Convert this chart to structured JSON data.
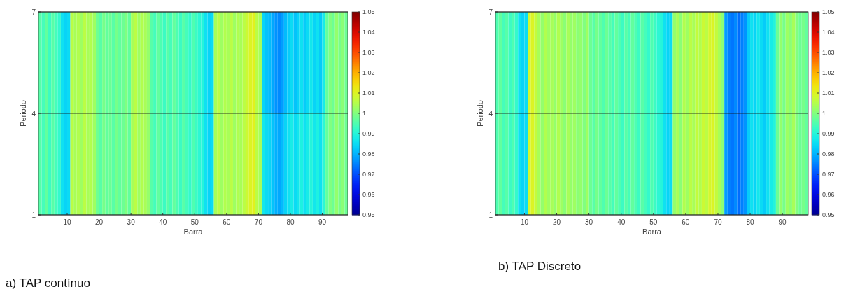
{
  "chart_data": [
    {
      "type": "heatmap",
      "title": "a)   TAP contínuo",
      "xlabel": "Barra",
      "ylabel": "Periodo",
      "x": [
        1.5,
        2.5,
        3.5,
        4.5,
        5.5,
        6.5,
        7.5,
        8.5,
        9.5,
        10.5,
        11.5,
        12.5,
        13.5,
        14.5,
        15.5,
        16.5,
        17.5,
        18.5,
        19.5,
        20.5,
        21.5,
        22.5,
        23.5,
        24.5,
        25.5,
        26.5,
        27.5,
        28.5,
        29.5,
        30.5,
        31.5,
        32.5,
        33.5,
        34.5,
        35.5,
        36.5,
        37.5,
        38.5,
        39.5,
        40.5,
        41.5,
        42.5,
        43.5,
        44.5,
        45.5,
        46.5,
        47.5,
        48.5,
        49.5,
        50.5,
        51.5,
        52.5,
        53.5,
        54.5,
        55.5,
        56.5,
        57.5,
        58.5,
        59.5,
        60.5,
        61.5,
        62.5,
        63.5,
        64.5,
        65.5,
        66.5,
        67.5,
        68.5,
        69.5,
        70.5,
        71.5,
        72.5,
        73.5,
        74.5,
        75.5,
        76.5,
        77.5,
        78.5,
        79.5,
        80.5,
        81.5,
        82.5,
        83.5,
        84.5,
        85.5,
        86.5,
        87.5,
        88.5,
        89.5,
        90.5,
        91.5,
        92.5,
        93.5,
        94.5,
        95.5,
        96.5,
        97.5
      ],
      "xlim": [
        1,
        98
      ],
      "xticks": [
        10,
        20,
        30,
        40,
        50,
        60,
        70,
        80,
        90
      ],
      "ylim": [
        1,
        7
      ],
      "yticks": [
        1,
        4,
        7
      ],
      "grid": "y",
      "clim": [
        0.95,
        1.05
      ],
      "cticks": [
        0.95,
        0.96,
        0.97,
        0.98,
        0.99,
        1,
        1.01,
        1.02,
        1.03,
        1.04,
        1.05
      ],
      "cells": [
        [
          0.996,
          0.994,
          0.997,
          0.993,
          0.996,
          0.994,
          0.992,
          0.986,
          0.984,
          0.985,
          1.006,
          1.004,
          1.005,
          1.003,
          1.006,
          1.004,
          1.005,
          1.003,
          0.998,
          0.996,
          0.999,
          0.997,
          0.998,
          0.996,
          0.999,
          0.997,
          0.998,
          1.0,
          0.997,
          1.004,
          1.006,
          1.003,
          1.005,
          1.004,
          1.002,
          0.996,
          0.994,
          0.997,
          0.995,
          0.993,
          0.996,
          0.994,
          0.997,
          0.995,
          0.993,
          0.996,
          0.994,
          0.992,
          0.995,
          0.993,
          0.991,
          0.99,
          0.986,
          0.984,
          0.985,
          1.004,
          1.006,
          1.003,
          1.005,
          1.004,
          1.006,
          1.003,
          1.005,
          1.004,
          1.006,
          1.008,
          1.01,
          1.011,
          1.006,
          1.004,
          0.984,
          0.982,
          0.981,
          0.979,
          0.977,
          0.976,
          0.978,
          0.981,
          0.983,
          0.985,
          0.982,
          0.984,
          0.986,
          0.983,
          0.985,
          0.987,
          0.984,
          0.986,
          0.983,
          0.988,
          0.997,
          1.0,
          0.998,
          1.002,
          0.999,
          1.001,
          0.998
        ],
        [
          0.996,
          0.994,
          0.997,
          0.993,
          0.996,
          0.994,
          0.992,
          0.986,
          0.984,
          0.985,
          1.006,
          1.004,
          1.005,
          1.003,
          1.006,
          1.004,
          1.005,
          1.003,
          0.998,
          0.996,
          0.999,
          0.997,
          0.998,
          0.996,
          0.999,
          0.997,
          0.998,
          1.0,
          0.997,
          1.004,
          1.006,
          1.003,
          1.005,
          1.004,
          1.002,
          0.996,
          0.994,
          0.997,
          0.995,
          0.993,
          0.996,
          0.994,
          0.997,
          0.995,
          0.993,
          0.996,
          0.994,
          0.992,
          0.995,
          0.993,
          0.991,
          0.99,
          0.986,
          0.984,
          0.985,
          1.004,
          1.006,
          1.003,
          1.005,
          1.004,
          1.006,
          1.003,
          1.005,
          1.004,
          1.006,
          1.008,
          1.01,
          1.011,
          1.006,
          1.004,
          0.987,
          0.985,
          0.984,
          0.982,
          0.98,
          0.979,
          0.981,
          0.984,
          0.986,
          0.988,
          0.985,
          0.987,
          0.989,
          0.986,
          0.988,
          0.99,
          0.987,
          0.989,
          0.986,
          0.991,
          0.997,
          1.0,
          0.998,
          1.002,
          0.999,
          1.001,
          0.998
        ]
      ]
    },
    {
      "type": "heatmap",
      "title": "b)   TAP Discreto",
      "xlabel": "Barra",
      "ylabel": "Periodo",
      "x": [
        1.5,
        2.5,
        3.5,
        4.5,
        5.5,
        6.5,
        7.5,
        8.5,
        9.5,
        10.5,
        11.5,
        12.5,
        13.5,
        14.5,
        15.5,
        16.5,
        17.5,
        18.5,
        19.5,
        20.5,
        21.5,
        22.5,
        23.5,
        24.5,
        25.5,
        26.5,
        27.5,
        28.5,
        29.5,
        30.5,
        31.5,
        32.5,
        33.5,
        34.5,
        35.5,
        36.5,
        37.5,
        38.5,
        39.5,
        40.5,
        41.5,
        42.5,
        43.5,
        44.5,
        45.5,
        46.5,
        47.5,
        48.5,
        49.5,
        50.5,
        51.5,
        52.5,
        53.5,
        54.5,
        55.5,
        56.5,
        57.5,
        58.5,
        59.5,
        60.5,
        61.5,
        62.5,
        63.5,
        64.5,
        65.5,
        66.5,
        67.5,
        68.5,
        69.5,
        70.5,
        71.5,
        72.5,
        73.5,
        74.5,
        75.5,
        76.5,
        77.5,
        78.5,
        79.5,
        80.5,
        81.5,
        82.5,
        83.5,
        84.5,
        85.5,
        86.5,
        87.5,
        88.5,
        89.5,
        90.5,
        91.5,
        92.5,
        93.5,
        94.5,
        95.5,
        96.5,
        97.5
      ],
      "xlim": [
        1,
        98
      ],
      "xticks": [
        10,
        20,
        30,
        40,
        50,
        60,
        70,
        80,
        90
      ],
      "ylim": [
        1,
        7
      ],
      "yticks": [
        1,
        4,
        7
      ],
      "grid": "y",
      "clim": [
        0.95,
        1.05
      ],
      "cticks": [
        0.95,
        0.96,
        0.97,
        0.98,
        0.99,
        1,
        1.01,
        1.02,
        1.03,
        1.04,
        1.05
      ],
      "cells": [
        [
          0.995,
          0.997,
          0.994,
          0.996,
          0.993,
          0.995,
          0.992,
          0.986,
          0.984,
          0.985,
          1.009,
          1.01,
          1.007,
          1.004,
          1.002,
          1.005,
          1.003,
          1.004,
          1.002,
          1.005,
          1.003,
          1.001,
          1.004,
          1.002,
          1.003,
          1.001,
          1.002,
          1.0,
          1.003,
          0.998,
          0.996,
          0.999,
          0.997,
          0.995,
          0.998,
          0.996,
          0.994,
          0.997,
          0.995,
          0.993,
          0.996,
          0.994,
          0.997,
          0.995,
          0.993,
          0.996,
          0.994,
          0.992,
          0.995,
          0.993,
          0.991,
          0.99,
          0.986,
          0.984,
          0.985,
          1.002,
          1.004,
          1.001,
          1.005,
          1.003,
          1.006,
          1.004,
          1.007,
          1.005,
          1.008,
          1.006,
          1.009,
          1.01,
          1.007,
          1.004,
          1.001,
          0.978,
          0.975,
          0.974,
          0.976,
          0.973,
          0.975,
          0.977,
          0.983,
          0.986,
          0.984,
          0.987,
          0.985,
          0.983,
          0.986,
          0.988,
          0.99,
          0.998,
          1.002,
          0.999,
          1.003,
          1.001,
          1.004,
          1.0,
          0.998,
          0.999,
          0.997
        ],
        [
          0.995,
          0.997,
          0.994,
          0.996,
          0.993,
          0.995,
          0.992,
          0.986,
          0.984,
          0.985,
          1.009,
          1.01,
          1.007,
          1.004,
          1.002,
          1.005,
          1.003,
          1.004,
          1.002,
          1.005,
          1.003,
          1.001,
          1.004,
          1.002,
          1.003,
          1.001,
          1.002,
          1.0,
          1.003,
          0.998,
          0.996,
          0.999,
          0.997,
          0.995,
          0.998,
          0.996,
          0.994,
          0.997,
          0.995,
          0.993,
          0.996,
          0.994,
          0.997,
          0.995,
          0.993,
          0.996,
          0.994,
          0.992,
          0.995,
          0.993,
          0.991,
          0.99,
          0.986,
          0.984,
          0.985,
          1.002,
          1.004,
          1.001,
          1.005,
          1.003,
          1.006,
          1.004,
          1.007,
          1.005,
          1.008,
          1.006,
          1.009,
          1.01,
          1.007,
          1.004,
          1.001,
          0.978,
          0.975,
          0.974,
          0.976,
          0.973,
          0.975,
          0.977,
          0.983,
          0.986,
          0.984,
          0.987,
          0.985,
          0.983,
          0.986,
          0.988,
          0.99,
          0.998,
          1.002,
          0.999,
          1.003,
          1.001,
          1.004,
          1.0,
          0.998,
          0.999,
          0.997
        ]
      ]
    }
  ]
}
